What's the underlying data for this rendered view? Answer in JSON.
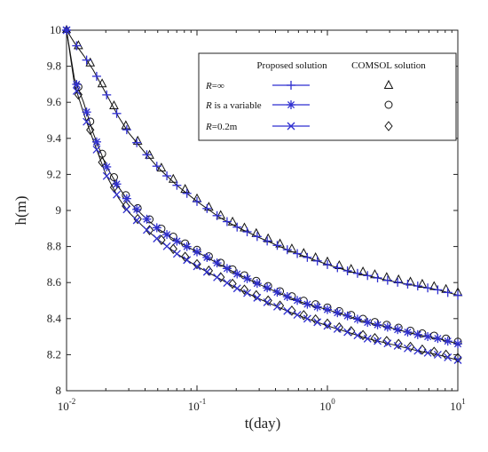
{
  "chart_data": {
    "type": "line",
    "title": "",
    "xlabel": "t(day)",
    "ylabel": "h(m)",
    "x_scale": "log",
    "xlim": [
      0.01,
      10
    ],
    "ylim": [
      8,
      10
    ],
    "x_tick_labels": [
      {
        "base": "10",
        "exp": "-2"
      },
      {
        "base": "10",
        "exp": "-1"
      },
      {
        "base": "10",
        "exp": "0"
      },
      {
        "base": "10",
        "exp": "1"
      }
    ],
    "y_ticks": [
      8,
      8.2,
      8.4,
      8.6,
      8.8,
      9,
      9.2,
      9.4,
      9.6,
      9.8,
      10
    ],
    "y_tick_labels": [
      "8",
      "8.2",
      "8.4",
      "8.6",
      "8.8",
      "9",
      "9.2",
      "9.4",
      "9.6",
      "9.8",
      "10"
    ],
    "grid": false,
    "legend_placement": "top-right",
    "legend_headers": [
      "Proposed solution",
      "COMSOL solution"
    ],
    "colors": {
      "proposed": "#2f2fd0",
      "comsol": "#111111",
      "curve": "#111111"
    },
    "series": [
      {
        "name": "R=∞",
        "label_parts": [
          {
            "t": "R",
            "italic": true
          },
          {
            "t": "=∞",
            "italic": false
          }
        ],
        "proposed_marker": "plus",
        "comsol_marker": "triangle",
        "x": [
          0.01,
          0.0115,
          0.0135,
          0.016,
          0.02,
          0.025,
          0.03,
          0.04,
          0.05,
          0.07,
          0.1,
          0.15,
          0.2,
          0.3,
          0.5,
          0.7,
          1,
          1.5,
          2,
          3,
          5,
          7,
          10
        ],
        "y": [
          10,
          9.93,
          9.86,
          9.78,
          9.65,
          9.52,
          9.43,
          9.32,
          9.24,
          9.14,
          9.05,
          8.96,
          8.91,
          8.85,
          8.78,
          8.74,
          8.7,
          8.66,
          8.64,
          8.61,
          8.58,
          8.56,
          8.53
        ]
      },
      {
        "name": "R is a variable",
        "label_parts": [
          {
            "t": "R",
            "italic": true
          },
          {
            "t": " is a variable",
            "italic": false
          }
        ],
        "proposed_marker": "asterisk",
        "comsol_marker": "circle",
        "x": [
          0.01,
          0.0115,
          0.0135,
          0.016,
          0.02,
          0.025,
          0.03,
          0.04,
          0.05,
          0.07,
          0.1,
          0.15,
          0.2,
          0.3,
          0.5,
          0.7,
          1,
          1.5,
          2,
          3,
          5,
          7,
          10
        ],
        "y": [
          10,
          9.73,
          9.6,
          9.43,
          9.25,
          9.13,
          9.05,
          8.96,
          8.9,
          8.83,
          8.77,
          8.7,
          8.65,
          8.59,
          8.52,
          8.48,
          8.45,
          8.41,
          8.38,
          8.35,
          8.31,
          8.29,
          8.26
        ]
      },
      {
        "name": "R=0.2m",
        "label_parts": [
          {
            "t": "R",
            "italic": true
          },
          {
            "t": "=0.2m",
            "italic": false
          }
        ],
        "proposed_marker": "cross",
        "comsol_marker": "diamond",
        "x": [
          0.01,
          0.0115,
          0.0135,
          0.016,
          0.02,
          0.025,
          0.03,
          0.04,
          0.05,
          0.07,
          0.1,
          0.15,
          0.2,
          0.3,
          0.5,
          0.7,
          1,
          1.5,
          2,
          3,
          5,
          7,
          10
        ],
        "y": [
          10,
          9.7,
          9.54,
          9.39,
          9.2,
          9.07,
          8.99,
          8.9,
          8.84,
          8.76,
          8.69,
          8.62,
          8.57,
          8.51,
          8.44,
          8.4,
          8.36,
          8.32,
          8.29,
          8.26,
          8.22,
          8.2,
          8.17
        ]
      }
    ]
  }
}
